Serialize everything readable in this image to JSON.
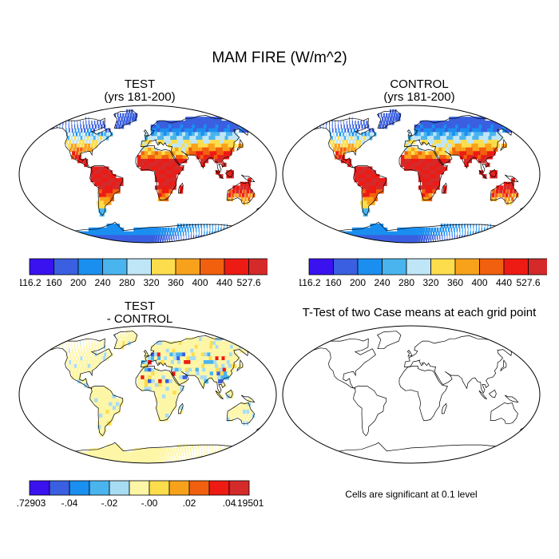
{
  "figure": {
    "title": "MAM FIRE (W/m^2)"
  },
  "panels": [
    {
      "id": "test",
      "title_line1": "TEST",
      "title_line2": "(yrs 181-200)"
    },
    {
      "id": "control",
      "title_line1": "CONTROL",
      "title_line2": "(yrs 181-200)"
    },
    {
      "id": "diff",
      "title_line1": "TEST",
      "title_line2": "- CONTROL"
    },
    {
      "id": "ttest",
      "title_line1": "T-Test of two Case means at each grid point",
      "title_line2": ""
    }
  ],
  "colorbars": {
    "abs": {
      "labels": [
        "116.2",
        "160",
        "200",
        "240",
        "280",
        "320",
        "360",
        "400",
        "440",
        "527.6"
      ],
      "colors": [
        "#3a12f0",
        "#3a5fe0",
        "#1a8ff0",
        "#4ab4ee",
        "#bfe6f6",
        "#fddd4c",
        "#f8a21c",
        "#f1600e",
        "#ee1a14",
        "#d42a2a"
      ]
    },
    "diff": {
      "labels": [
        "-.72903",
        "-.04",
        "-.02",
        "-.00",
        ".02",
        ".04",
        ".19501"
      ],
      "colors": [
        "#3a12f0",
        "#3a5fe0",
        "#1a8ff0",
        "#4ab4ee",
        "#a8dcf2",
        "#fdf6a6",
        "#fddd4c",
        "#f8a21c",
        "#f1600e",
        "#ee1a14",
        "#d42a2a"
      ]
    }
  },
  "notes": {
    "significance": "Cells are significant at 0.1 level"
  }
}
